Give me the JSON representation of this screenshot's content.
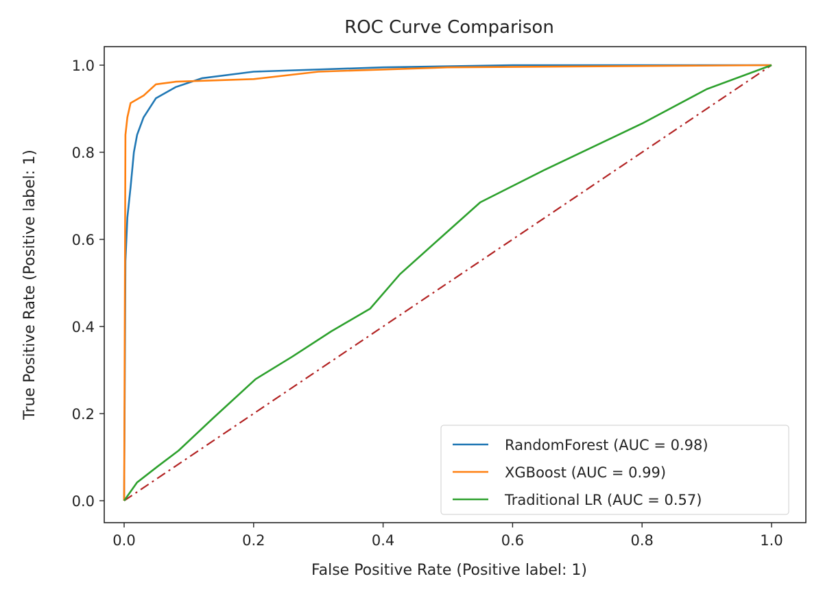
{
  "chart_data": {
    "type": "line",
    "title": "ROC Curve Comparison",
    "xlabel": "False Positive Rate (Positive label: 1)",
    "ylabel": "True Positive Rate (Positive label: 1)",
    "xlim": [
      -0.03,
      1.05
    ],
    "ylim": [
      -0.05,
      1.05
    ],
    "xticks": [
      "0.0",
      "0.2",
      "0.4",
      "0.6",
      "0.8",
      "1.0"
    ],
    "yticks": [
      "0.0",
      "0.2",
      "0.4",
      "0.6",
      "0.8",
      "1.0"
    ],
    "grid": false,
    "legend_position": "lower-right",
    "series": [
      {
        "name": "RandomForest (AUC = 0.98)",
        "color": "#1f77b4",
        "x": [
          0,
          0.002,
          0.005,
          0.01,
          0.015,
          0.02,
          0.03,
          0.049,
          0.08,
          0.12,
          0.2,
          0.4,
          0.6,
          1.0
        ],
        "y": [
          0,
          0.55,
          0.65,
          0.72,
          0.8,
          0.84,
          0.88,
          0.924,
          0.95,
          0.97,
          0.985,
          0.995,
          1.0,
          1.0
        ]
      },
      {
        "name": "XGBoost (AUC = 0.99)",
        "color": "#ff7f0e",
        "x": [
          0,
          0.002,
          0.005,
          0.01,
          0.03,
          0.049,
          0.08,
          0.2,
          0.3,
          0.5,
          1.0
        ],
        "y": [
          0,
          0.84,
          0.88,
          0.913,
          0.93,
          0.956,
          0.962,
          0.968,
          0.985,
          0.995,
          1.0
        ]
      },
      {
        "name": "Traditional LR (AUC = 0.57)",
        "color": "#2ca02c",
        "x": [
          0,
          0.02,
          0.052,
          0.084,
          0.137,
          0.203,
          0.26,
          0.32,
          0.38,
          0.426,
          0.486,
          0.55,
          0.65,
          0.8,
          0.9,
          1.0
        ],
        "y": [
          0,
          0.042,
          0.079,
          0.115,
          0.189,
          0.279,
          0.331,
          0.389,
          0.441,
          0.52,
          0.6,
          0.685,
          0.76,
          0.866,
          0.945,
          1.0
        ]
      }
    ],
    "reference_line": {
      "x": [
        0,
        1
      ],
      "y": [
        0,
        1
      ],
      "color": "#b22222",
      "style": "dash-dot"
    }
  }
}
